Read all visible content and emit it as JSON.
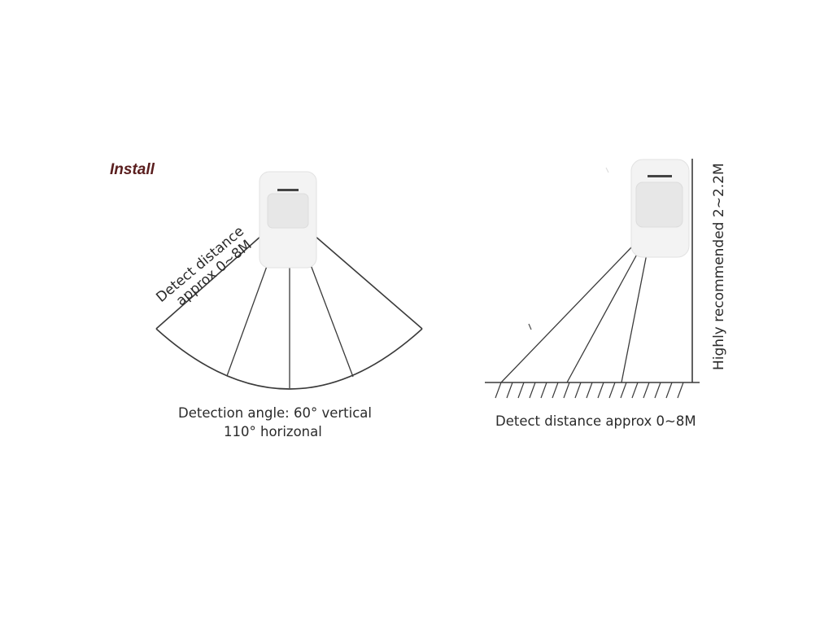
{
  "heading": {
    "text": "Install",
    "color": "#5a1e1e"
  },
  "left_panel": {
    "distance_label_line1": "Detect distance",
    "distance_label_line2": "approx 0~8M",
    "caption_line1": "Detection angle: 60° vertical",
    "caption_line2": "110° horizonal",
    "sensor_icon": "pir-motion-sensor-icon"
  },
  "right_panel": {
    "height_label": "Highly recommended 2~2.2M",
    "caption": "Detect distance approx 0~8M",
    "sensor_icon": "pir-motion-sensor-icon"
  },
  "colors": {
    "line": "#3a3a3a",
    "sensor_body": "#f2f2f2",
    "sensor_lens": "#e6e6e6",
    "sensor_bar": "#444444"
  }
}
